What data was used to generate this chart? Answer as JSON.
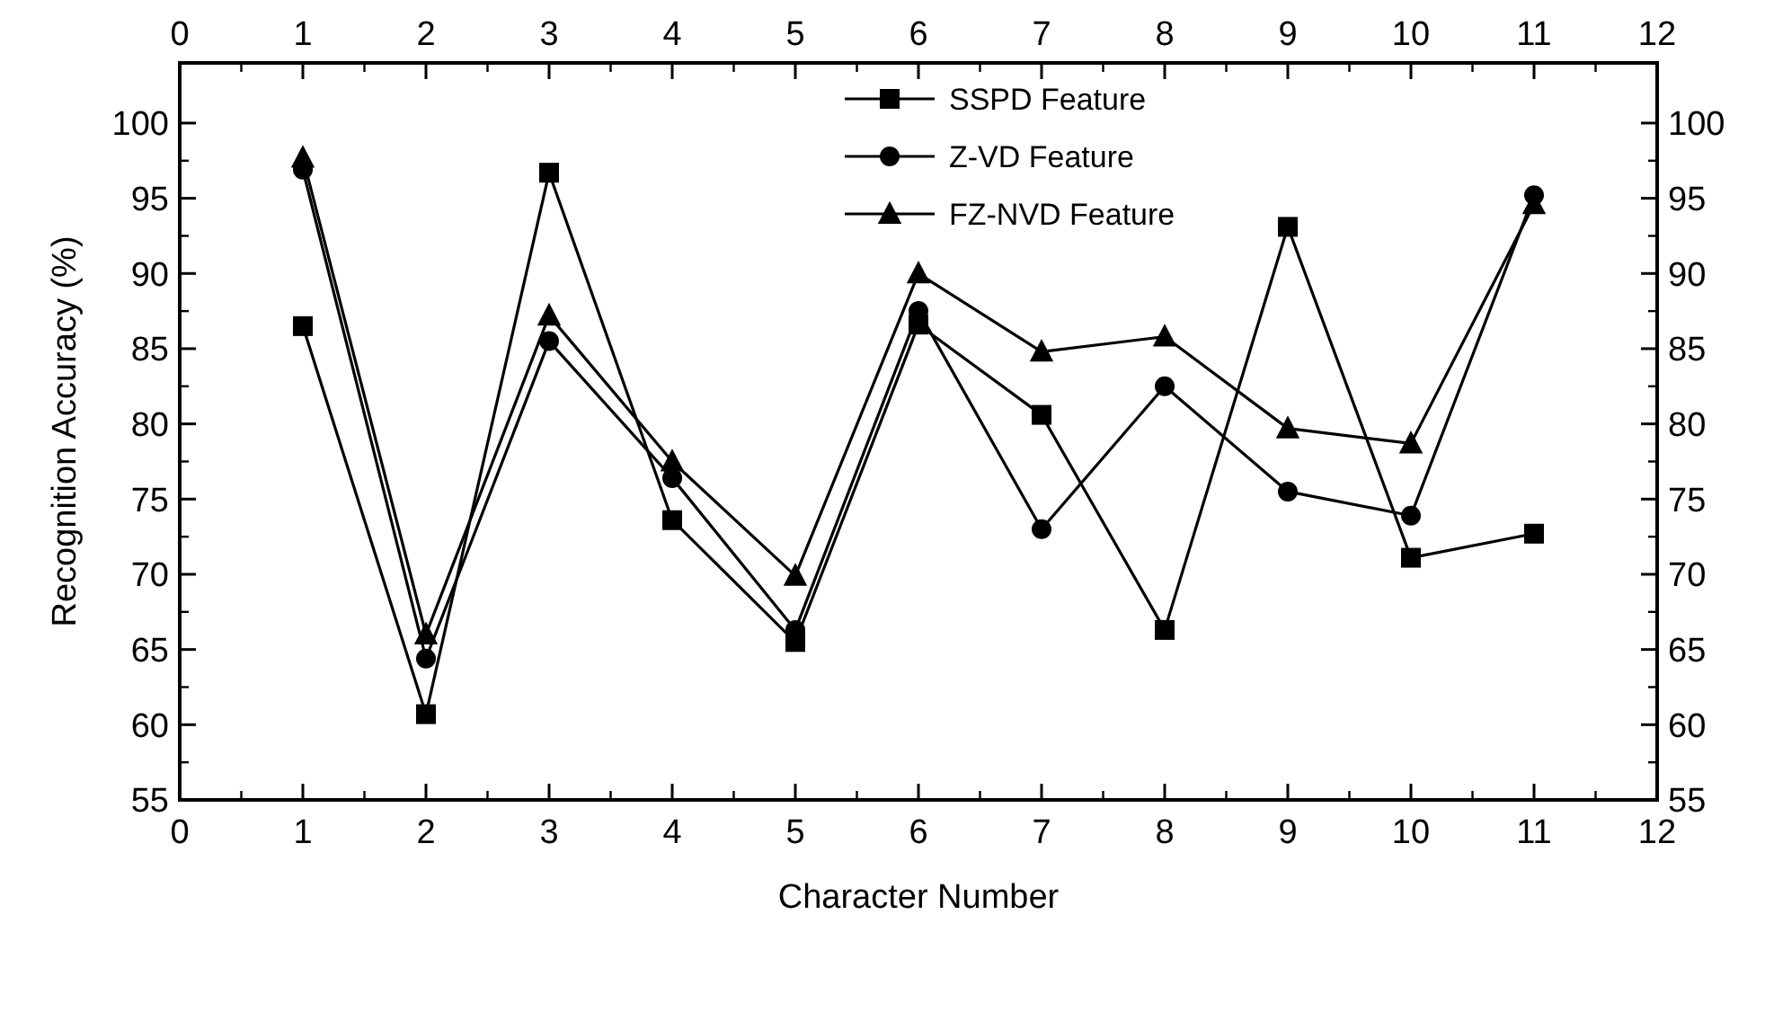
{
  "chart_data": {
    "type": "line",
    "xlabel": "Character Number",
    "ylabel": "Recognition Accuracy (%)",
    "x": [
      1,
      2,
      3,
      4,
      5,
      6,
      7,
      8,
      9,
      10,
      11
    ],
    "xlim": [
      0,
      12
    ],
    "xticks": [
      0,
      1,
      2,
      3,
      4,
      5,
      6,
      7,
      8,
      9,
      10,
      11,
      12
    ],
    "x2lim": [
      0,
      12
    ],
    "x2ticks": [
      0,
      1,
      2,
      3,
      4,
      5,
      6,
      7,
      8,
      9,
      10,
      11,
      12
    ],
    "ylim": [
      55,
      104
    ],
    "yticks": [
      55,
      60,
      65,
      70,
      75,
      80,
      85,
      90,
      95,
      100
    ],
    "y2lim": [
      55,
      104
    ],
    "y2ticks": [
      55,
      60,
      65,
      70,
      75,
      80,
      85,
      90,
      95,
      100
    ],
    "grid": false,
    "legend": "top",
    "line_style": "solid",
    "series": [
      {
        "name": "SSPD Feature",
        "color": "#000000",
        "marker": "square",
        "values": [
          86.5,
          60.7,
          96.7,
          73.6,
          65.5,
          86.6,
          80.6,
          66.3,
          93.1,
          71.1,
          72.7
        ]
      },
      {
        "name": "Z-VD Feature",
        "color": "#000000",
        "marker": "circle",
        "values": [
          96.9,
          64.4,
          85.5,
          76.4,
          66.3,
          87.5,
          73.0,
          82.5,
          75.5,
          73.9,
          95.2
        ]
      },
      {
        "name": "FZ-NVD Feature",
        "color": "#000000",
        "marker": "triangle",
        "values": [
          97.7,
          66.0,
          87.2,
          77.5,
          69.9,
          90.0,
          84.8,
          85.8,
          79.7,
          78.7,
          94.6
        ]
      }
    ]
  }
}
